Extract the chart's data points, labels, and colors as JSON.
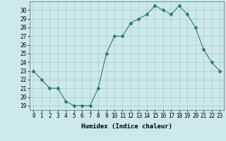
{
  "x": [
    0,
    1,
    2,
    3,
    4,
    5,
    6,
    7,
    8,
    9,
    10,
    11,
    12,
    13,
    14,
    15,
    16,
    17,
    18,
    19,
    20,
    21,
    22,
    23
  ],
  "y": [
    23,
    22,
    21,
    21,
    19.5,
    19,
    19,
    19,
    21,
    25,
    27,
    27,
    28.5,
    29,
    29.5,
    30.5,
    30,
    29.5,
    30.5,
    29.5,
    28,
    25.5,
    24,
    23
  ],
  "xlabel": "Humidex (Indice chaleur)",
  "xlim": [
    -0.5,
    23.5
  ],
  "ylim": [
    18.5,
    31
  ],
  "yticks": [
    19,
    20,
    21,
    22,
    23,
    24,
    25,
    26,
    27,
    28,
    29,
    30
  ],
  "xticks": [
    0,
    1,
    2,
    3,
    4,
    5,
    6,
    7,
    8,
    9,
    10,
    11,
    12,
    13,
    14,
    15,
    16,
    17,
    18,
    19,
    20,
    21,
    22,
    23
  ],
  "line_color": "#2d7d6e",
  "marker": "D",
  "marker_size": 2.5,
  "bg_color": "#cce8e8",
  "grid_color": "#aacece",
  "label_fontsize": 6.5,
  "tick_fontsize": 5.5
}
